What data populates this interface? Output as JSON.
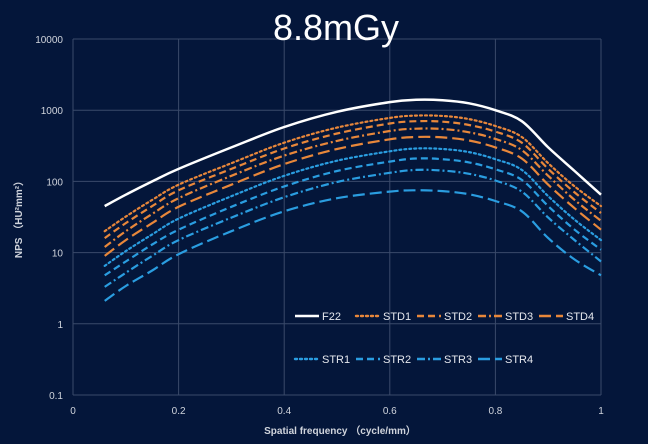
{
  "chart_data": {
    "type": "line",
    "title": "8.8mGy",
    "xlabel": "Spatial frequency （cycle/mm）",
    "ylabel": "NPS （HU²mm²）",
    "xlim": [
      0,
      1
    ],
    "ylim": [
      0.1,
      10000
    ],
    "yscale": "log",
    "grid": true,
    "legend_position": "bottom-right",
    "x_ticks": [
      "0",
      "0.2",
      "0.4",
      "0.6",
      "0.8",
      "1"
    ],
    "y_ticks": [
      "0.1",
      "1",
      "10",
      "100",
      "1000",
      "10000"
    ],
    "x": [
      0.06,
      0.1,
      0.15,
      0.2,
      0.3,
      0.4,
      0.5,
      0.6,
      0.65,
      0.7,
      0.75,
      0.8,
      0.85,
      0.9,
      0.95,
      1.0
    ],
    "series": [
      {
        "name": "F22",
        "color": "#ffffff",
        "dash": "solid",
        "values": [
          45,
          65,
          100,
          150,
          300,
          580,
          950,
          1300,
          1400,
          1380,
          1250,
          1000,
          700,
          300,
          140,
          65
        ]
      },
      {
        "name": "STD1",
        "color": "#e8873a",
        "dash": "dot",
        "values": [
          20,
          32,
          55,
          90,
          180,
          350,
          570,
          780,
          840,
          830,
          750,
          600,
          420,
          180,
          85,
          45
        ]
      },
      {
        "name": "STD2",
        "color": "#e8873a",
        "dash": "dash",
        "values": [
          16,
          26,
          45,
          75,
          150,
          290,
          470,
          650,
          700,
          690,
          620,
          500,
          350,
          150,
          70,
          36
        ]
      },
      {
        "name": "STD3",
        "color": "#e8873a",
        "dash": "dashdot",
        "values": [
          12,
          20,
          35,
          58,
          120,
          230,
          370,
          510,
          550,
          545,
          490,
          395,
          275,
          120,
          55,
          28
        ]
      },
      {
        "name": "STD4",
        "color": "#e8873a",
        "dash": "longdash",
        "values": [
          9,
          15,
          26,
          44,
          90,
          175,
          285,
          390,
          420,
          415,
          375,
          300,
          210,
          90,
          42,
          21
        ]
      },
      {
        "name": "STR1",
        "color": "#2a9de0",
        "dash": "dot",
        "values": [
          6.5,
          10.5,
          18,
          30,
          62,
          120,
          195,
          265,
          290,
          285,
          258,
          205,
          145,
          62,
          29,
          15
        ]
      },
      {
        "name": "STR2",
        "color": "#2a9de0",
        "dash": "dash",
        "values": [
          4.8,
          7.5,
          13,
          21,
          44,
          85,
          140,
          190,
          210,
          205,
          185,
          148,
          105,
          45,
          21,
          11
        ]
      },
      {
        "name": "STR3",
        "color": "#2a9de0",
        "dash": "dashdot",
        "values": [
          3.3,
          5.2,
          9,
          15,
          31,
          60,
          98,
          132,
          145,
          142,
          128,
          103,
          72,
          31,
          15,
          7.5
        ]
      },
      {
        "name": "STR4",
        "color": "#2a9de0",
        "dash": "longdash",
        "values": [
          2.1,
          3.4,
          5.6,
          9.5,
          20,
          38,
          58,
          72,
          75,
          73,
          66,
          53,
          38,
          16,
          8,
          4.8
        ]
      }
    ]
  }
}
